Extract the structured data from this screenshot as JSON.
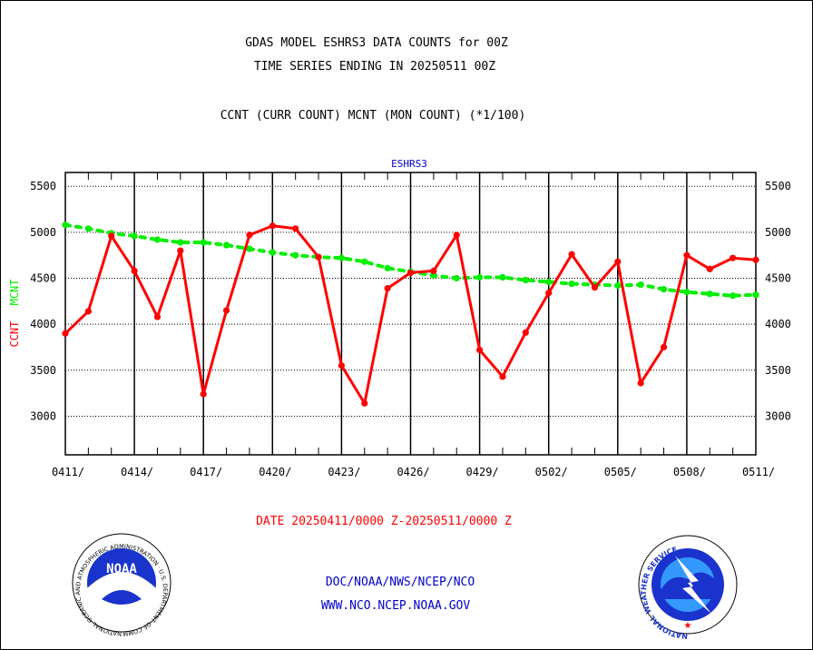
{
  "header": {
    "title_line1": "GDAS MODEL ESHRS3 DATA COUNTS for 00Z",
    "title_line2": "TIME SERIES ENDING IN 20250511 00Z",
    "subtitle": "CCNT (CURR COUNT) MCNT (MON COUNT) (*1/100)"
  },
  "footer": {
    "date_range": "DATE 20250411/0000 Z-20250511/0000 Z",
    "link_line1": "DOC/NOAA/NWS/NCEP/NCO",
    "link_line2": "WWW.NCO.NCEP.NOAA.GOV",
    "noaa_logo_text": "NOAA",
    "noaa_ring_text": "NATIONAL OCEANIC AND ATMOSPHERIC ADMINISTRATION · U.S. DEPARTMENT OF COMMERCE ·",
    "nws_ring_text": "NATIONAL WEATHER SERVICE"
  },
  "chart_data": {
    "type": "line",
    "title": "ESHRS3",
    "ylabel_ccnt": "CCNT",
    "ylabel_mcnt": "MCNT",
    "ylim": [
      2580,
      5650
    ],
    "yticks": [
      3000,
      3500,
      4000,
      4500,
      5000,
      5500
    ],
    "xticks": [
      "0411/",
      "0414/",
      "0417/",
      "0420/",
      "0423/",
      "0426/",
      "0429/",
      "0502/",
      "0505/",
      "0508/",
      "0511/"
    ],
    "grid": true,
    "colors": {
      "ccnt": "#ff0000",
      "mcnt": "#00ee00",
      "title": "#0000cc",
      "links": "#0000cc",
      "date": "#ff0000"
    },
    "series": [
      {
        "name": "CCNT",
        "values": [
          3900,
          4140,
          4960,
          4580,
          4080,
          4800,
          3240,
          4150,
          4970,
          5070,
          5040,
          4730,
          3550,
          3140,
          4390,
          4560,
          4580,
          4970,
          3720,
          3430,
          3910,
          4340,
          4760,
          4400,
          4680,
          3360,
          3750,
          4750,
          4600,
          4720,
          4700
        ]
      },
      {
        "name": "MCNT",
        "values": [
          5080,
          5040,
          4990,
          4960,
          4920,
          4890,
          4890,
          4860,
          4820,
          4780,
          4750,
          4730,
          4720,
          4680,
          4610,
          4570,
          4530,
          4500,
          4510,
          4510,
          4480,
          4460,
          4440,
          4430,
          4420,
          4430,
          4380,
          4350,
          4330,
          4310,
          4320
        ]
      }
    ]
  }
}
